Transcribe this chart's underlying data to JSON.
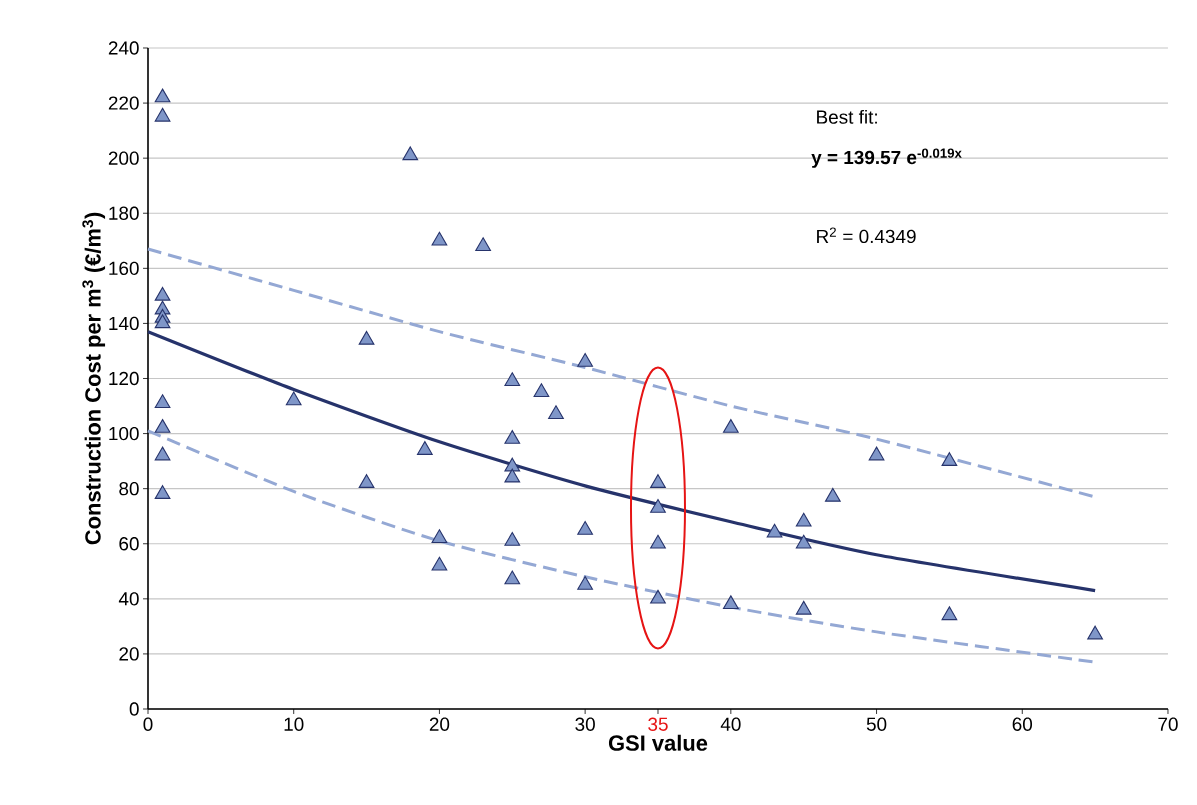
{
  "chart_data": {
    "type": "scatter",
    "xlabel": "GSI value",
    "ylabel": "Construction Cost  per m$^{3}$ (€/m$^{3}$)",
    "xlim": [
      0,
      70
    ],
    "xticks": [
      0,
      10,
      20,
      30,
      35,
      40,
      50,
      60,
      70
    ],
    "ylim": [
      0,
      240
    ],
    "yticks": [
      0,
      20,
      40,
      60,
      80,
      100,
      120,
      140,
      160,
      180,
      200,
      220,
      240
    ],
    "grid": "y",
    "series": [
      {
        "marker": "triangle",
        "color": "#7f96c8",
        "x": [
          1,
          1,
          1,
          1,
          1,
          1,
          1,
          1,
          1,
          1,
          10,
          15,
          15,
          18,
          19,
          20,
          20,
          20,
          23,
          25,
          25,
          25,
          25,
          25,
          25,
          27,
          28,
          30,
          30,
          30,
          35,
          35,
          35,
          35,
          40,
          40,
          43,
          45,
          45,
          45,
          47,
          50,
          55,
          55,
          65
        ],
        "values": [
          222,
          215,
          150,
          145,
          142,
          140,
          111,
          102,
          92,
          78,
          112,
          134,
          82,
          201,
          94,
          170,
          62,
          52,
          168,
          119,
          98,
          88,
          84,
          61,
          47,
          115,
          107,
          126,
          65,
          45,
          82,
          73,
          60,
          40,
          102,
          38,
          64,
          68,
          60,
          36,
          77,
          92,
          90,
          34,
          27
        ]
      },
      {
        "type": "line",
        "line_style": "solid",
        "color": "#26336b",
        "x": [
          0,
          10,
          20,
          30,
          40,
          50,
          65
        ],
        "values": [
          137,
          116,
          97,
          81,
          68,
          56,
          43
        ]
      },
      {
        "type": "line",
        "line_style": "dashed",
        "color": "#94a8d4",
        "x": [
          0,
          10,
          20,
          30,
          40,
          50,
          65
        ],
        "values": [
          167,
          152,
          137,
          124,
          110,
          98,
          77
        ]
      },
      {
        "type": "line",
        "line_style": "dashed",
        "color": "#94a8d4",
        "x": [
          0,
          10,
          20,
          30,
          40,
          50,
          65
        ],
        "values": [
          101,
          79,
          61,
          48,
          37,
          28,
          17
        ]
      }
    ],
    "annotations": [
      "Best fit:",
      "y = 139.57 e$^{-0.019x}$",
      "R$^{2}$ = 0.4349"
    ]
  }
}
